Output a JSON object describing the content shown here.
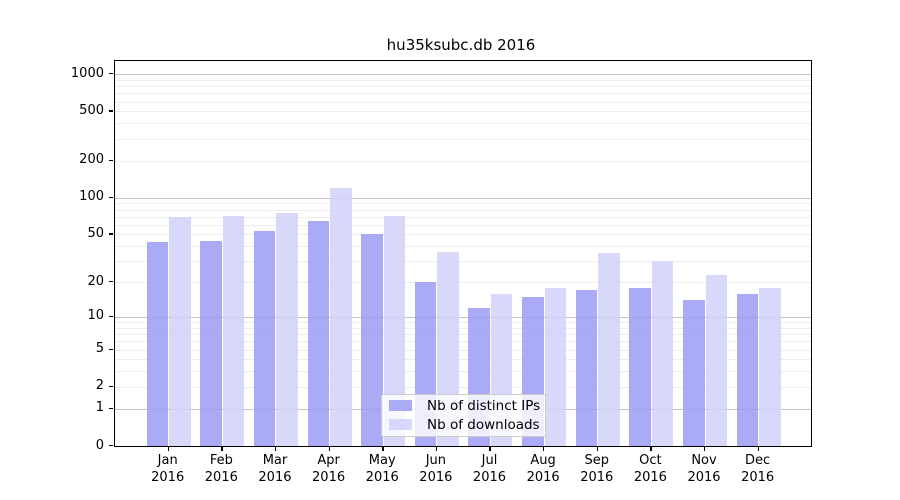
{
  "chart": {
    "title": "hu35ksubc.db 2016",
    "legend": {
      "position": "lower-center"
    }
  },
  "chart_data": {
    "type": "bar",
    "title": "hu35ksubc.db 2016",
    "categories": [
      "Jan 2016",
      "Feb 2016",
      "Mar 2016",
      "Apr 2016",
      "May 2016",
      "Jun 2016",
      "Jul 2016",
      "Aug 2016",
      "Sep 2016",
      "Oct 2016",
      "Nov 2016",
      "Dec 2016"
    ],
    "series": [
      {
        "name": "Nb of distinct IPs",
        "color": "#9c9cf3",
        "values": [
          43,
          44,
          53,
          65,
          50,
          20,
          12,
          15,
          17,
          18,
          14,
          16
        ]
      },
      {
        "name": "Nb of downloads",
        "color": "#d1d1fa",
        "values": [
          70,
          71,
          75,
          120,
          71,
          36,
          16,
          18,
          35,
          30,
          23,
          18
        ]
      }
    ],
    "xlabel": "",
    "ylabel": "",
    "y_scale": "log1p",
    "ylim": [
      0,
      1290
    ],
    "ytick_values": [
      0,
      1,
      2,
      5,
      10,
      20,
      50,
      100,
      200,
      500,
      1000
    ],
    "ytick_labels": [
      "0",
      "1",
      "2",
      "5",
      "10",
      "20",
      "50",
      "100",
      "200",
      "500",
      "1000"
    ],
    "major_gridlines": [
      1,
      10,
      100,
      1000
    ],
    "minor_gridlines": [
      2,
      3,
      4,
      5,
      6,
      7,
      8,
      9,
      20,
      30,
      40,
      50,
      60,
      70,
      80,
      90,
      200,
      300,
      400,
      500,
      600,
      700,
      800,
      900
    ],
    "grid": true,
    "legend_position": "lower-center"
  }
}
